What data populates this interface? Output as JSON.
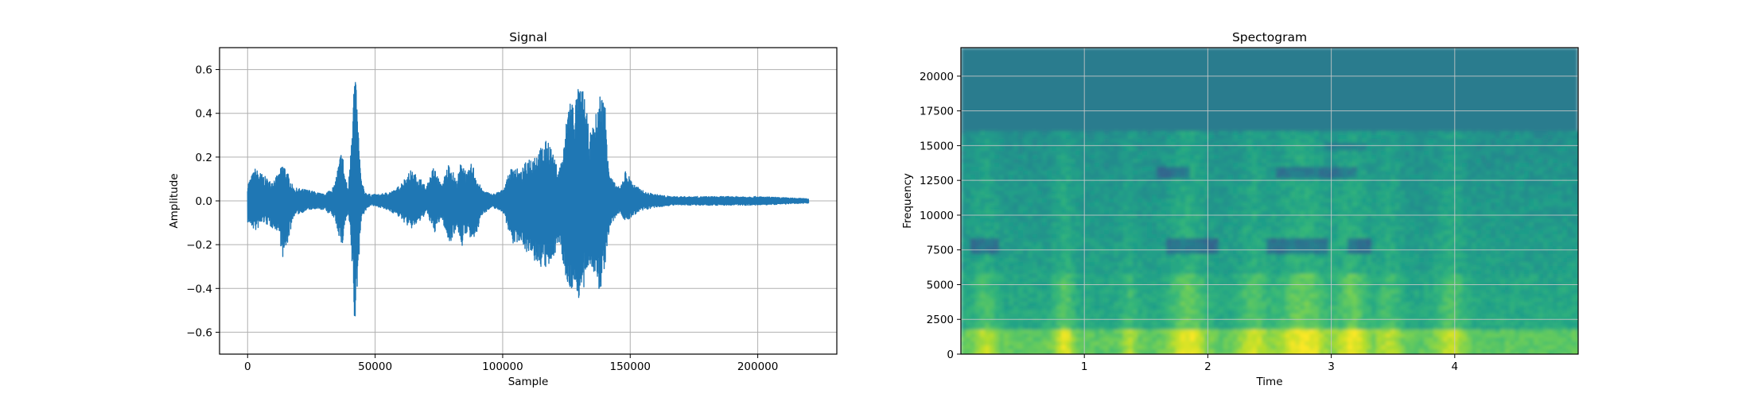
{
  "chart_data": [
    {
      "type": "line",
      "title": "Signal",
      "xlabel": "Sample",
      "ylabel": "Amplitude",
      "xlim": [
        -11000,
        231000
      ],
      "ylim": [
        -0.7,
        0.7
      ],
      "xticks": [
        0,
        50000,
        100000,
        150000,
        200000
      ],
      "xtick_labels": [
        "0",
        "50000",
        "100000",
        "150000",
        "200000"
      ],
      "yticks": [
        -0.6,
        -0.4,
        -0.2,
        0.0,
        0.2,
        0.4,
        0.6
      ],
      "ytick_labels": [
        "−0.6",
        "−0.4",
        "−0.2",
        "0.0",
        "0.2",
        "0.4",
        "0.6"
      ],
      "grid": true,
      "color": "#1f77b4",
      "series": [
        {
          "envelope_x": [
            0,
            3000,
            6000,
            9000,
            12000,
            14000,
            18000,
            24000,
            30000,
            34000,
            37000,
            38000,
            39500,
            41000,
            42000,
            43000,
            44500,
            46000,
            48000,
            52000,
            58000,
            64000,
            68000,
            70000,
            73000,
            76000,
            79000,
            82000,
            84000,
            86000,
            88000,
            90000,
            92000,
            96000,
            100000,
            104000,
            107000,
            110000,
            114000,
            118000,
            120000,
            122000,
            124000,
            126000,
            128000,
            130000,
            132000,
            134000,
            136000,
            138000,
            140000,
            142000,
            144000,
            146000,
            148000,
            152000,
            156000,
            160000,
            166000,
            180000,
            200000,
            220000
          ],
          "envelope_upper": [
            0.08,
            0.15,
            0.12,
            0.09,
            0.12,
            0.18,
            0.06,
            0.05,
            0.03,
            0.07,
            0.25,
            0.13,
            0.05,
            0.42,
            0.62,
            0.42,
            0.1,
            0.04,
            0.03,
            0.03,
            0.05,
            0.14,
            0.1,
            0.06,
            0.16,
            0.07,
            0.18,
            0.09,
            0.2,
            0.12,
            0.18,
            0.1,
            0.05,
            0.03,
            0.05,
            0.17,
            0.13,
            0.2,
            0.23,
            0.29,
            0.2,
            0.14,
            0.25,
            0.5,
            0.45,
            0.53,
            0.5,
            0.3,
            0.36,
            0.5,
            0.48,
            0.12,
            0.08,
            0.06,
            0.14,
            0.07,
            0.04,
            0.03,
            0.02,
            0.02,
            0.02,
            0.01
          ],
          "envelope_lower": [
            -0.1,
            -0.14,
            -0.1,
            -0.12,
            -0.14,
            -0.28,
            -0.07,
            -0.04,
            -0.04,
            -0.08,
            -0.22,
            -0.11,
            -0.06,
            -0.32,
            -0.62,
            -0.38,
            -0.08,
            -0.05,
            -0.02,
            -0.03,
            -0.06,
            -0.13,
            -0.09,
            -0.05,
            -0.15,
            -0.08,
            -0.2,
            -0.12,
            -0.21,
            -0.14,
            -0.2,
            -0.14,
            -0.06,
            -0.03,
            -0.05,
            -0.2,
            -0.18,
            -0.25,
            -0.3,
            -0.32,
            -0.25,
            -0.2,
            -0.3,
            -0.44,
            -0.38,
            -0.46,
            -0.41,
            -0.28,
            -0.35,
            -0.43,
            -0.3,
            -0.12,
            -0.08,
            -0.05,
            -0.1,
            -0.06,
            -0.04,
            -0.03,
            -0.02,
            -0.02,
            -0.02,
            -0.01
          ]
        }
      ]
    },
    {
      "type": "heatmap",
      "title": "Spectogram",
      "xlabel": "Time",
      "ylabel": "Frequency",
      "xlim": [
        0.0,
        5.0
      ],
      "ylim": [
        0,
        22050
      ],
      "xticks": [
        1,
        2,
        3,
        4
      ],
      "xtick_labels": [
        "1",
        "2",
        "3",
        "4"
      ],
      "yticks": [
        0,
        2500,
        5000,
        7500,
        10000,
        12500,
        15000,
        17500,
        20000
      ],
      "ytick_labels": [
        "0",
        "2500",
        "5000",
        "7500",
        "10000",
        "12500",
        "15000",
        "17500",
        "20000"
      ],
      "grid": true,
      "colormap": "viridis",
      "cutoff_frequency": 16000,
      "colors": {
        "above_cutoff": "#2b7b8e",
        "low": "#2a8d8a",
        "mid": "#3cb47a",
        "high": "#a8d945",
        "peak": "#e3e31e"
      }
    }
  ]
}
